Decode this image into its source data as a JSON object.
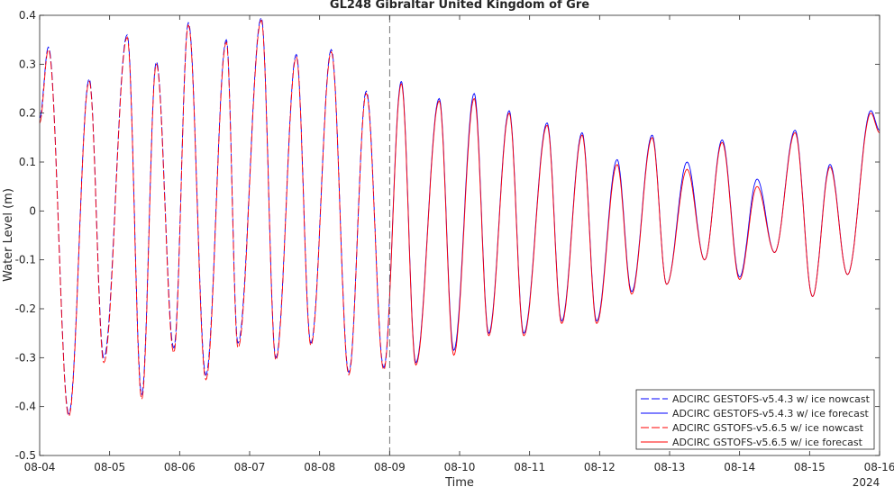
{
  "chart_data": {
    "type": "line",
    "title": "GL248 Gibraltar United Kingdom of Gre",
    "xlabel": "Time",
    "ylabel": "Water Level (m)",
    "year_label": "2024",
    "xlim": [
      "2024-08-04T00:00",
      "2024-08-16T00:00"
    ],
    "ylim": [
      -0.5,
      0.4
    ],
    "x_ticks": [
      "08-04",
      "08-05",
      "08-06",
      "08-07",
      "08-08",
      "08-09",
      "08-10",
      "08-11",
      "08-12",
      "08-13",
      "08-14",
      "08-15",
      "08-16"
    ],
    "y_ticks": [
      -0.5,
      -0.4,
      -0.3,
      -0.2,
      -0.1,
      0,
      0.1,
      0.2,
      0.3,
      0.4
    ],
    "y_tick_labels": [
      "-0.5",
      "-0.4",
      "-0.3",
      "-0.2",
      "-0.1",
      "0",
      "0.1",
      "0.2",
      "0.3",
      "0.4"
    ],
    "nowcast_forecast_divider": "2024-08-09T00:00",
    "legend_position": "bottom-right",
    "grid": false,
    "series": [
      {
        "name": "ADCIRC GESTOFS-v5.4.3 w/ ice nowcast",
        "color": "#0000ff",
        "style": "dashed",
        "segment": "nowcast"
      },
      {
        "name": "ADCIRC GESTOFS-v5.4.3 w/ ice forecast",
        "color": "#0000ff",
        "style": "solid",
        "segment": "forecast"
      },
      {
        "name": "ADCIRC GSTOFS-v5.6.5 w/ ice nowcast",
        "color": "#ff0000",
        "style": "dashed",
        "segment": "nowcast"
      },
      {
        "name": "ADCIRC GSTOFS-v5.6.5 w/ ice forecast",
        "color": "#ff0000",
        "style": "solid",
        "segment": "forecast"
      }
    ],
    "extrema_blue": [
      [
        "2024-08-04T00:00",
        0.19
      ],
      [
        "2024-08-04T03:00",
        0.335
      ],
      [
        "2024-08-04T10:00",
        -0.415
      ],
      [
        "2024-08-04T17:00",
        0.27
      ],
      [
        "2024-08-04T22:00",
        -0.3
      ],
      [
        "2024-08-05T06:00",
        0.36
      ],
      [
        "2024-08-05T11:00",
        -0.375
      ],
      [
        "2024-08-05T16:00",
        0.305
      ],
      [
        "2024-08-05T22:00",
        -0.28
      ],
      [
        "2024-08-06T03:00",
        0.385
      ],
      [
        "2024-08-06T09:00",
        -0.335
      ],
      [
        "2024-08-06T16:00",
        0.35
      ],
      [
        "2024-08-06T20:00",
        -0.27
      ],
      [
        "2024-08-07T04:00",
        0.395
      ],
      [
        "2024-08-07T09:00",
        -0.3
      ],
      [
        "2024-08-07T16:00",
        0.32
      ],
      [
        "2024-08-07T21:00",
        -0.27
      ],
      [
        "2024-08-08T04:00",
        0.33
      ],
      [
        "2024-08-08T10:00",
        -0.33
      ],
      [
        "2024-08-08T16:00",
        0.245
      ],
      [
        "2024-08-08T22:00",
        -0.32
      ],
      [
        "2024-08-09T04:00",
        0.265
      ],
      [
        "2024-08-09T09:00",
        -0.31
      ],
      [
        "2024-08-09T17:00",
        0.23
      ],
      [
        "2024-08-09T22:00",
        -0.285
      ],
      [
        "2024-08-10T05:00",
        0.24
      ],
      [
        "2024-08-10T10:00",
        -0.25
      ],
      [
        "2024-08-10T17:00",
        0.205
      ],
      [
        "2024-08-10T22:00",
        -0.25
      ],
      [
        "2024-08-11T06:00",
        0.18
      ],
      [
        "2024-08-11T11:00",
        -0.225
      ],
      [
        "2024-08-11T18:00",
        0.16
      ],
      [
        "2024-08-11T23:00",
        -0.225
      ],
      [
        "2024-08-12T06:00",
        0.105
      ],
      [
        "2024-08-12T11:00",
        -0.165
      ],
      [
        "2024-08-12T18:00",
        0.155
      ],
      [
        "2024-08-12T23:00",
        -0.15
      ],
      [
        "2024-08-13T06:00",
        0.1
      ],
      [
        "2024-08-13T12:00",
        -0.1
      ],
      [
        "2024-08-13T18:00",
        0.145
      ],
      [
        "2024-08-14T00:00",
        -0.135
      ],
      [
        "2024-08-14T06:00",
        0.065
      ],
      [
        "2024-08-14T12:00",
        -0.085
      ],
      [
        "2024-08-14T19:00",
        0.165
      ],
      [
        "2024-08-15T01:00",
        -0.175
      ],
      [
        "2024-08-15T07:00",
        0.095
      ],
      [
        "2024-08-15T13:00",
        -0.13
      ],
      [
        "2024-08-15T21:00",
        0.205
      ],
      [
        "2024-08-16T00:00",
        0.165
      ]
    ],
    "extrema_red": [
      [
        "2024-08-04T00:00",
        0.18
      ],
      [
        "2024-08-04T03:00",
        0.33
      ],
      [
        "2024-08-04T10:00",
        -0.42
      ],
      [
        "2024-08-04T17:00",
        0.265
      ],
      [
        "2024-08-04T22:00",
        -0.31
      ],
      [
        "2024-08-05T06:00",
        0.355
      ],
      [
        "2024-08-05T11:00",
        -0.385
      ],
      [
        "2024-08-05T16:00",
        0.3
      ],
      [
        "2024-08-05T22:00",
        -0.29
      ],
      [
        "2024-08-06T03:00",
        0.38
      ],
      [
        "2024-08-06T09:00",
        -0.345
      ],
      [
        "2024-08-06T16:00",
        0.345
      ],
      [
        "2024-08-06T20:00",
        -0.28
      ],
      [
        "2024-08-07T04:00",
        0.39
      ],
      [
        "2024-08-07T09:00",
        -0.305
      ],
      [
        "2024-08-07T16:00",
        0.315
      ],
      [
        "2024-08-07T21:00",
        -0.275
      ],
      [
        "2024-08-08T04:00",
        0.325
      ],
      [
        "2024-08-08T10:00",
        -0.335
      ],
      [
        "2024-08-08T16:00",
        0.24
      ],
      [
        "2024-08-08T22:00",
        -0.325
      ],
      [
        "2024-08-09T04:00",
        0.26
      ],
      [
        "2024-08-09T09:00",
        -0.315
      ],
      [
        "2024-08-09T17:00",
        0.225
      ],
      [
        "2024-08-09T22:00",
        -0.295
      ],
      [
        "2024-08-10T05:00",
        0.23
      ],
      [
        "2024-08-10T10:00",
        -0.255
      ],
      [
        "2024-08-10T17:00",
        0.2
      ],
      [
        "2024-08-10T22:00",
        -0.255
      ],
      [
        "2024-08-11T06:00",
        0.175
      ],
      [
        "2024-08-11T11:00",
        -0.23
      ],
      [
        "2024-08-11T18:00",
        0.155
      ],
      [
        "2024-08-11T23:00",
        -0.23
      ],
      [
        "2024-08-12T06:00",
        0.095
      ],
      [
        "2024-08-12T11:00",
        -0.17
      ],
      [
        "2024-08-12T18:00",
        0.15
      ],
      [
        "2024-08-12T23:00",
        -0.15
      ],
      [
        "2024-08-13T06:00",
        0.085
      ],
      [
        "2024-08-13T12:00",
        -0.1
      ],
      [
        "2024-08-13T18:00",
        0.14
      ],
      [
        "2024-08-14T00:00",
        -0.14
      ],
      [
        "2024-08-14T06:00",
        0.05
      ],
      [
        "2024-08-14T12:00",
        -0.085
      ],
      [
        "2024-08-14T19:00",
        0.16
      ],
      [
        "2024-08-15T01:00",
        -0.175
      ],
      [
        "2024-08-15T07:00",
        0.09
      ],
      [
        "2024-08-15T13:00",
        -0.13
      ],
      [
        "2024-08-15T21:00",
        0.2
      ],
      [
        "2024-08-16T00:00",
        0.16
      ]
    ]
  }
}
